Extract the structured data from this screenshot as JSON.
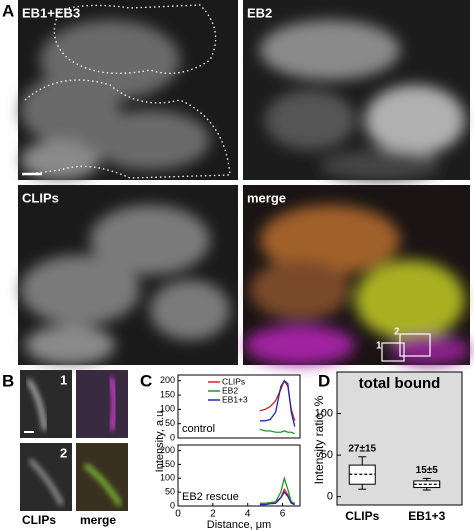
{
  "figure": {
    "A": {
      "letter": "A",
      "images": [
        "EB1+EB3",
        "EB2",
        "CLIPs",
        "merge"
      ],
      "roi_labels": [
        "1",
        "2"
      ]
    },
    "B": {
      "letter": "B",
      "image_labels": [
        "1",
        "2"
      ],
      "columns": [
        "CLIPs",
        "merge"
      ]
    },
    "C": {
      "letter": "C"
    },
    "D": {
      "letter": "D"
    }
  },
  "chart_data": [
    {
      "type": "line",
      "annotation": "control",
      "ylabel": "Intensity, a.u.",
      "x": [
        4.7,
        5.0,
        5.3,
        5.6,
        5.9,
        6.1,
        6.3,
        6.5,
        6.7
      ],
      "series": [
        {
          "name": "CLIPs",
          "color": "#e0201c",
          "values": [
            95,
            100,
            110,
            130,
            170,
            200,
            180,
            100,
            60
          ]
        },
        {
          "name": "EB2",
          "color": "#1e9a2a",
          "values": [
            30,
            25,
            25,
            20,
            20,
            25,
            20,
            20,
            15
          ]
        },
        {
          "name": "EB1+3",
          "color": "#1c2ab0",
          "values": [
            60,
            60,
            65,
            90,
            180,
            200,
            190,
            90,
            40
          ]
        }
      ],
      "xlim": [
        0,
        7
      ],
      "ylim": [
        0,
        220
      ],
      "yticks": [
        0,
        50,
        100,
        150,
        200
      ],
      "legend": "top-left"
    },
    {
      "type": "line",
      "annotation": "EB2 rescue",
      "xlabel": "Distance, μm",
      "x": [
        4.7,
        5.0,
        5.3,
        5.6,
        5.9,
        6.1,
        6.3,
        6.5,
        6.7
      ],
      "series": [
        {
          "color": "#e0201c",
          "values": [
            10,
            10,
            12,
            15,
            30,
            60,
            40,
            15,
            10
          ]
        },
        {
          "color": "#1e9a2a",
          "values": [
            10,
            10,
            12,
            15,
            50,
            100,
            60,
            15,
            10
          ]
        },
        {
          "color": "#1c2ab0",
          "values": [
            5,
            5,
            8,
            10,
            30,
            50,
            35,
            10,
            5
          ]
        }
      ],
      "xlim": [
        0,
        7
      ],
      "ylim": [
        0,
        220
      ],
      "xticks": [
        0,
        2,
        4,
        6
      ],
      "yticks": [
        0,
        50,
        100,
        150,
        200
      ]
    },
    {
      "type": "box",
      "title": "total bound",
      "ylabel": "Intensity ratio, %",
      "categories": [
        "CLIPs",
        "EB1+3"
      ],
      "boxes": [
        {
          "min": 9,
          "q1": 15,
          "median": 27,
          "q3": 38,
          "max": 48
        },
        {
          "min": 8,
          "q1": 11,
          "median": 15,
          "q3": 19,
          "max": 22
        }
      ],
      "annotations": [
        "27±15",
        "15±5"
      ],
      "ylim": [
        -10,
        150
      ],
      "yticks": [
        0,
        50,
        100
      ],
      "background": "#dcdcdc"
    }
  ]
}
